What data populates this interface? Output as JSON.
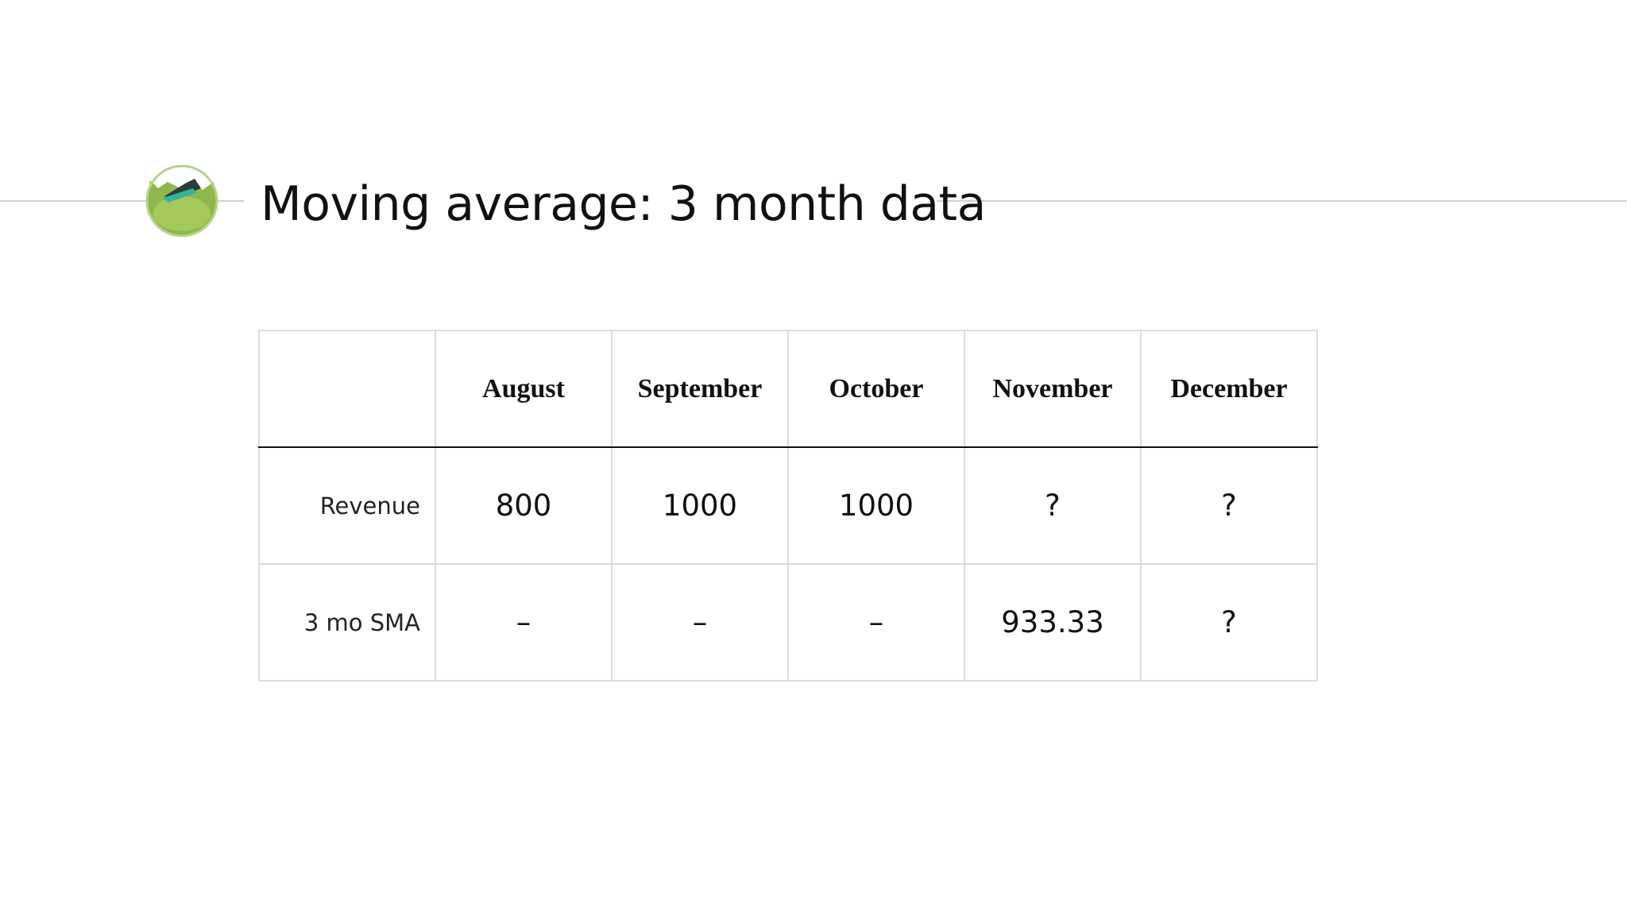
{
  "title": "Moving average: 3 month data",
  "table": {
    "columns": [
      "August",
      "September",
      "October",
      "November",
      "December"
    ],
    "rows": [
      {
        "label": "Revenue",
        "cells": [
          "800",
          "1000",
          "1000",
          "?",
          "?"
        ]
      },
      {
        "label": "3 mo SMA",
        "cells": [
          "–",
          "–",
          "–",
          "933.33",
          "?"
        ]
      }
    ]
  }
}
